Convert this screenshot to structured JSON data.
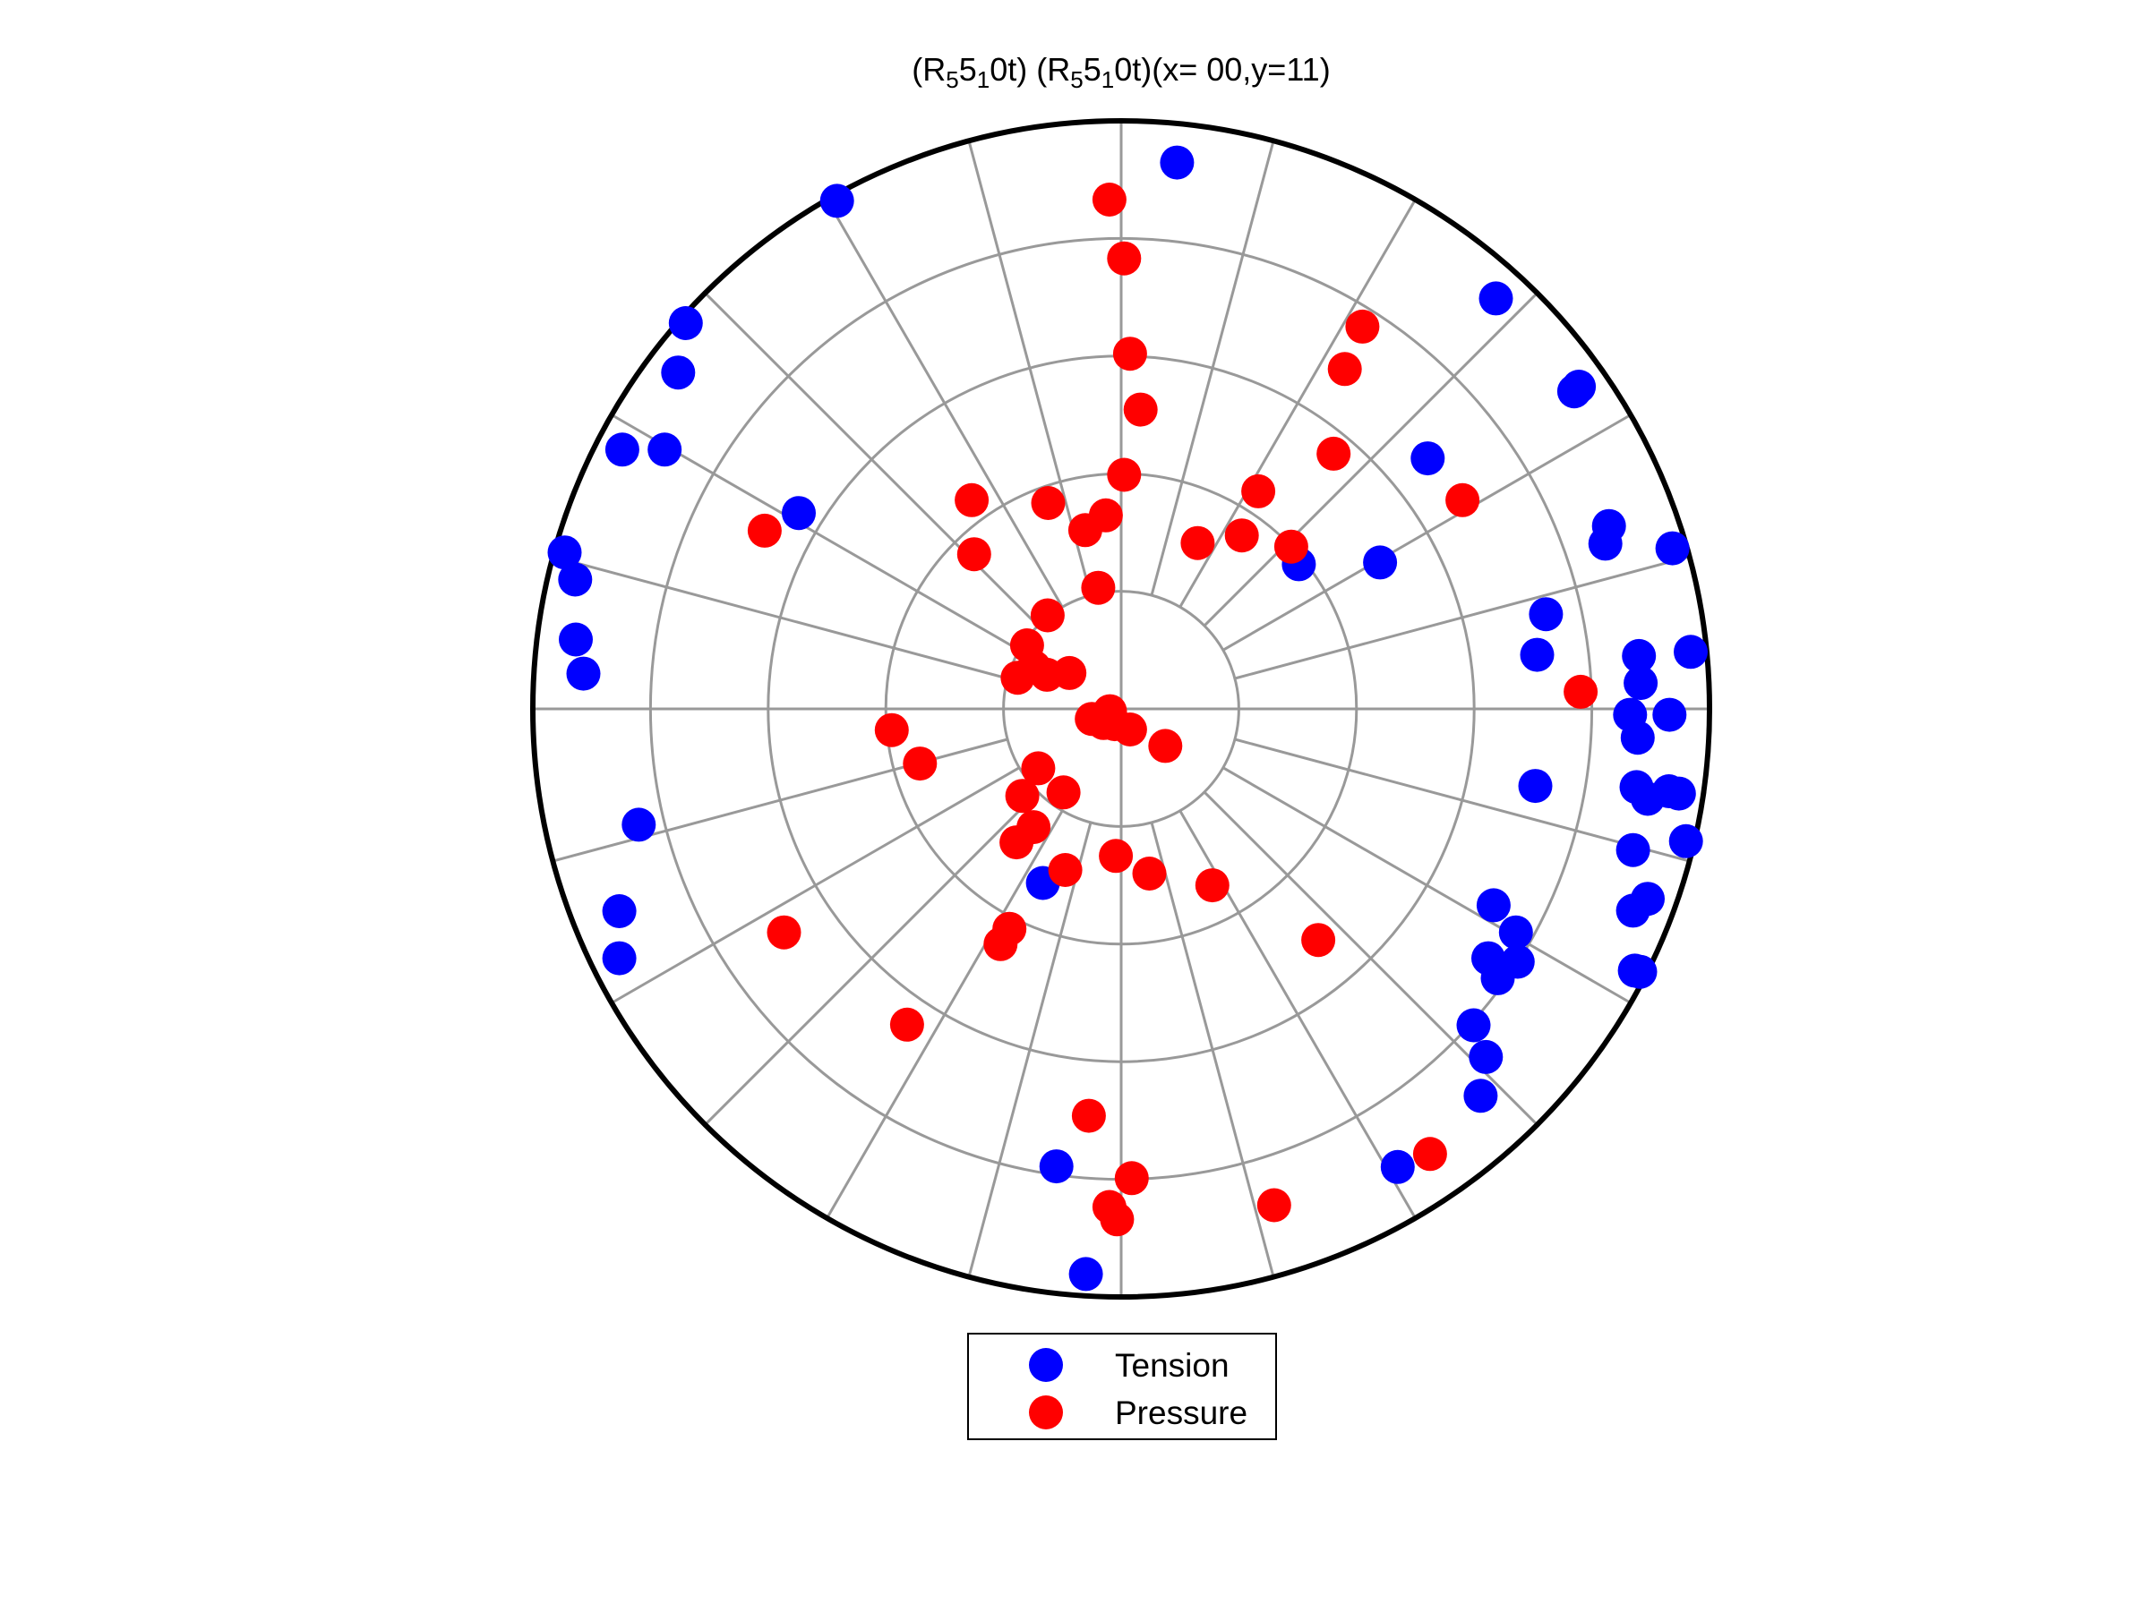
{
  "chart_data": {
    "type": "scatter",
    "projection": "polar-stereonet",
    "title": {
      "parts": [
        {
          "text": "(R",
          "sub": false
        },
        {
          "text": "5",
          "sub": true
        },
        {
          "text": "5",
          "sub": false
        },
        {
          "text": "1",
          "sub": true
        },
        {
          "text": "0t)  (R",
          "sub": false
        },
        {
          "text": "5",
          "sub": true
        },
        {
          "text": "5",
          "sub": false
        },
        {
          "text": "1",
          "sub": true
        },
        {
          "text": "0t)(x= 00,y=11)",
          "sub": false
        }
      ]
    },
    "grid": true,
    "rings": [
      0.2,
      0.4,
      0.6,
      0.8
    ],
    "spokes_deg": 15,
    "legend_position": "bottom",
    "series": [
      {
        "name": "Tension",
        "color": "#0000ff",
        "points": [
          [
            0.095,
            0.929
          ],
          [
            -0.483,
            0.864
          ],
          [
            0.637,
            0.698
          ],
          [
            -0.74,
            0.656
          ],
          [
            0.77,
            0.54
          ],
          [
            -0.753,
            0.572
          ],
          [
            0.778,
            0.548
          ],
          [
            -0.848,
            0.441
          ],
          [
            -0.776,
            0.441
          ],
          [
            -0.548,
            0.333
          ],
          [
            0.521,
            0.426
          ],
          [
            0.829,
            0.311
          ],
          [
            0.823,
            0.281
          ],
          [
            0.937,
            0.273
          ],
          [
            -0.946,
            0.266
          ],
          [
            -0.928,
            0.22
          ],
          [
            0.44,
            0.249
          ],
          [
            0.302,
            0.246
          ],
          [
            0.722,
            0.161
          ],
          [
            0.707,
            0.092
          ],
          [
            0.88,
            0.09
          ],
          [
            0.968,
            0.097
          ],
          [
            -0.927,
            0.118
          ],
          [
            0.883,
            0.044
          ],
          [
            -0.914,
            0.06
          ],
          [
            0.932,
            -0.01
          ],
          [
            0.865,
            -0.01
          ],
          [
            0.878,
            -0.049
          ],
          [
            0.704,
            -0.131
          ],
          [
            0.876,
            -0.133
          ],
          [
            0.931,
            -0.14
          ],
          [
            0.895,
            -0.153
          ],
          [
            0.948,
            -0.144
          ],
          [
            0.96,
            -0.225
          ],
          [
            0.87,
            -0.24
          ],
          [
            -0.82,
            -0.197
          ],
          [
            0.633,
            -0.334
          ],
          [
            0.895,
            -0.323
          ],
          [
            -0.853,
            -0.344
          ],
          [
            0.87,
            -0.343
          ],
          [
            0.671,
            -0.38
          ],
          [
            -0.853,
            -0.424
          ],
          [
            0.624,
            -0.424
          ],
          [
            0.674,
            -0.43
          ],
          [
            0.882,
            -0.447
          ],
          [
            0.873,
            -0.445
          ],
          [
            0.64,
            -0.458
          ],
          [
            0.599,
            -0.538
          ],
          [
            0.62,
            -0.592
          ],
          [
            0.611,
            -0.658
          ],
          [
            -0.133,
            -0.296
          ],
          [
            0.47,
            -0.779
          ],
          [
            -0.11,
            -0.778
          ],
          [
            -0.06,
            -0.961
          ]
        ]
      },
      {
        "name": "Pressure",
        "color": "#ff0000",
        "points": [
          [
            -0.02,
            0.866
          ],
          [
            0.005,
            0.766
          ],
          [
            0.41,
            0.65
          ],
          [
            0.015,
            0.604
          ],
          [
            0.38,
            0.578
          ],
          [
            0.033,
            0.509
          ],
          [
            0.361,
            0.434
          ],
          [
            0.005,
            0.398
          ],
          [
            0.233,
            0.37
          ],
          [
            -0.124,
            0.35
          ],
          [
            -0.254,
            0.355
          ],
          [
            -0.026,
            0.329
          ],
          [
            0.58,
            0.355
          ],
          [
            -0.061,
            0.304
          ],
          [
            -0.606,
            0.303
          ],
          [
            0.205,
            0.295
          ],
          [
            0.13,
            0.282
          ],
          [
            0.289,
            0.276
          ],
          [
            -0.25,
            0.263
          ],
          [
            -0.039,
            0.206
          ],
          [
            -0.125,
            0.159
          ],
          [
            -0.16,
            0.108
          ],
          [
            -0.148,
            0.071
          ],
          [
            -0.176,
            0.053
          ],
          [
            -0.126,
            0.058
          ],
          [
            -0.088,
            0.061
          ],
          [
            0.781,
            0.029
          ],
          [
            -0.019,
            -0.004
          ],
          [
            -0.05,
            -0.017
          ],
          [
            -0.03,
            -0.024
          ],
          [
            -0.011,
            -0.026
          ],
          [
            0.015,
            -0.035
          ],
          [
            -0.39,
            -0.036
          ],
          [
            0.075,
            -0.063
          ],
          [
            -0.342,
            -0.093
          ],
          [
            -0.141,
            -0.101
          ],
          [
            -0.098,
            -0.142
          ],
          [
            -0.168,
            -0.148
          ],
          [
            -0.149,
            -0.201
          ],
          [
            -0.178,
            -0.227
          ],
          [
            -0.009,
            -0.25
          ],
          [
            0.048,
            -0.28
          ],
          [
            -0.095,
            -0.274
          ],
          [
            0.155,
            -0.3
          ],
          [
            -0.19,
            -0.374
          ],
          [
            -0.205,
            -0.4
          ],
          [
            0.335,
            -0.393
          ],
          [
            -0.573,
            -0.38
          ],
          [
            -0.364,
            -0.537
          ],
          [
            -0.055,
            -0.692
          ],
          [
            0.018,
            -0.798
          ],
          [
            0.26,
            -0.844
          ],
          [
            -0.02,
            -0.847
          ],
          [
            -0.007,
            -0.868
          ],
          [
            0.525,
            -0.757
          ]
        ]
      }
    ]
  }
}
